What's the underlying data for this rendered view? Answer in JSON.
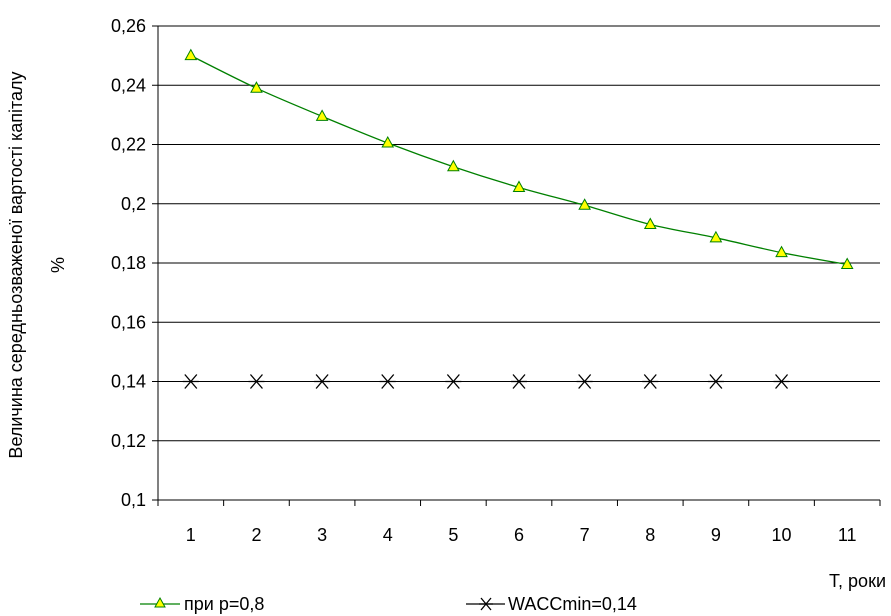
{
  "chart_data": {
    "type": "line",
    "categories": [
      "1",
      "2",
      "3",
      "4",
      "5",
      "6",
      "7",
      "8",
      "9",
      "10",
      "11"
    ],
    "x": [
      1,
      2,
      3,
      4,
      5,
      6,
      7,
      8,
      9,
      10,
      11
    ],
    "series": [
      {
        "name": "при p=0,8",
        "values": [
          0.25,
          0.239,
          0.2295,
          0.2205,
          0.2125,
          0.2055,
          0.1995,
          0.193,
          0.1885,
          0.1835,
          0.1795
        ],
        "color": "#008000",
        "marker": "triangle",
        "marker_fill": "#ffff00",
        "line": true
      },
      {
        "name": "WACCmin=0,14",
        "values": [
          0.14,
          0.14,
          0.14,
          0.14,
          0.14,
          0.14,
          0.14,
          0.14,
          0.14,
          0.14,
          null
        ],
        "color": "#000000",
        "marker": "asterisk",
        "line": false
      }
    ],
    "yticks": [
      "0,1",
      "0,12",
      "0,14",
      "0,16",
      "0,18",
      "0,2",
      "0,22",
      "0,24",
      "0,26"
    ],
    "ylim": [
      0.1,
      0.26
    ],
    "xlabel": "T, роки",
    "ylabel_line1": "Величина середньозваженої вартості капіталу",
    "ylabel_line2": "%",
    "grid": "horizontal",
    "legend_position": "bottom"
  }
}
